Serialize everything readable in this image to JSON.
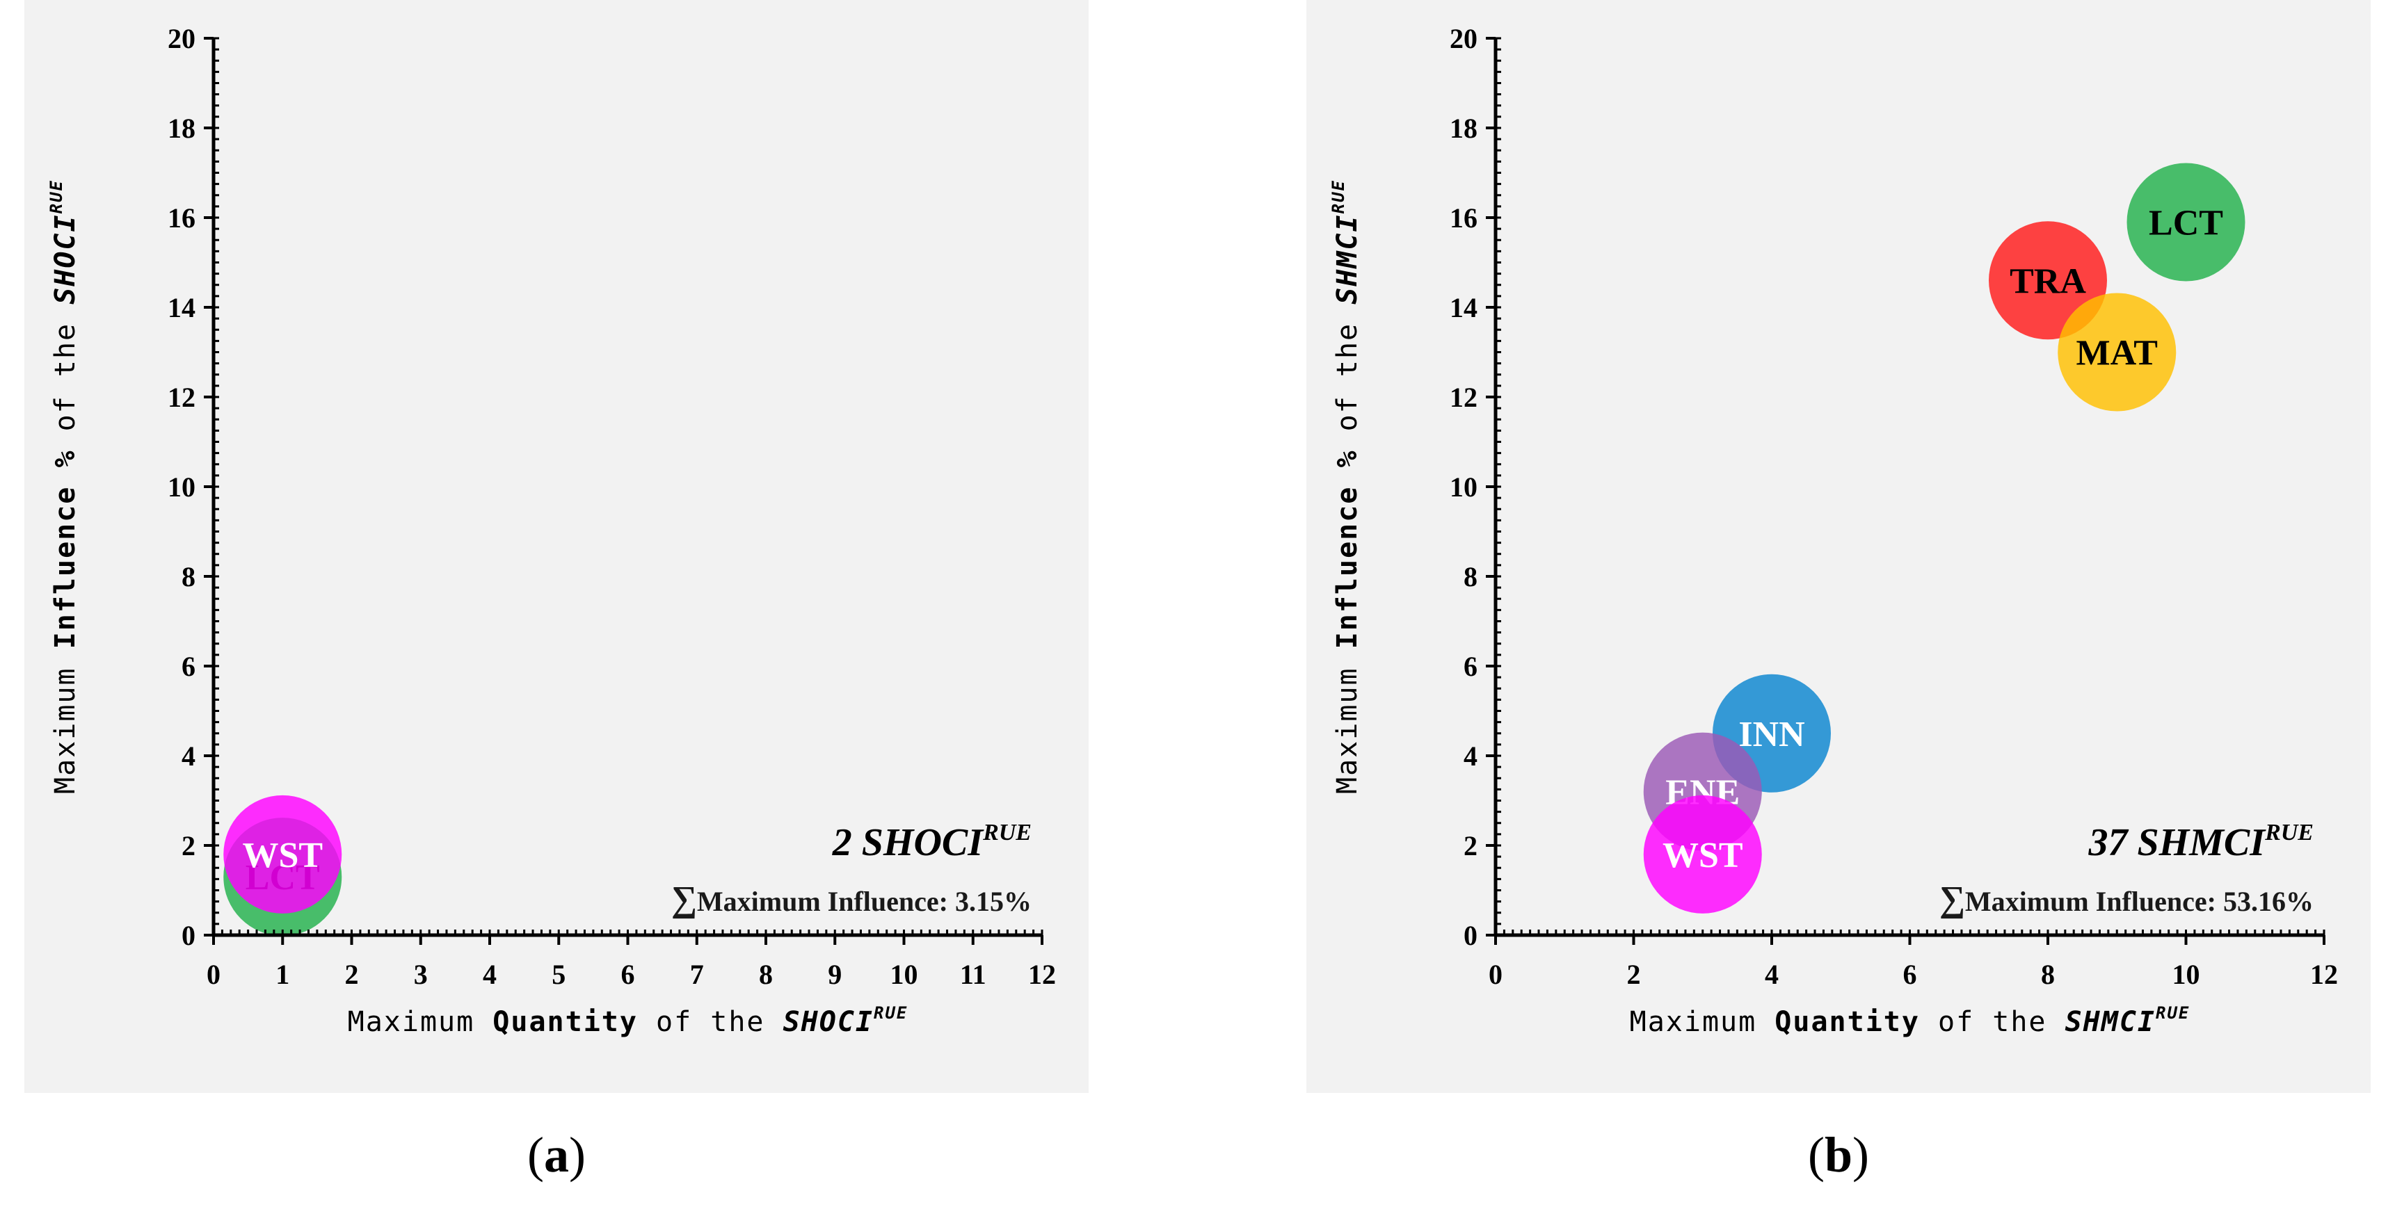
{
  "chart_data": [
    {
      "type": "scatter",
      "subtype": "bubble",
      "panel_label": "a",
      "xlabel_prefix": "Maximum ",
      "xlabel_bold": "Quantity",
      "xlabel_mid": " of the ",
      "xlabel_var": "SHOCI",
      "xlabel_sup": "RUE",
      "ylabel_prefix": "Maximum ",
      "ylabel_bold": "Influence %",
      "ylabel_mid": " of the ",
      "ylabel_var": "SHOCI",
      "ylabel_sup": "RUE",
      "xlim": [
        0,
        12
      ],
      "ylim": [
        0,
        20
      ],
      "xticks": [
        0,
        1,
        2,
        3,
        4,
        5,
        6,
        7,
        8,
        9,
        10,
        11,
        12
      ],
      "yticks": [
        0,
        2,
        4,
        6,
        8,
        10,
        12,
        14,
        16,
        18,
        20
      ],
      "points": [
        {
          "label": "LCT",
          "x": 1,
          "y": 1.3,
          "color": "#22b14c",
          "text_color": "#000000"
        },
        {
          "label": "WST",
          "x": 1,
          "y": 1.8,
          "color": "#ff00ff",
          "text_color": "#ffffff"
        }
      ],
      "annotation": {
        "count": "2",
        "name": "SHOCI",
        "sup": "RUE",
        "sum_symbol": "∑",
        "sum_label": "Maximum Influence: 3.15%"
      }
    },
    {
      "type": "scatter",
      "subtype": "bubble",
      "panel_label": "b",
      "xlabel_prefix": "Maximum ",
      "xlabel_bold": "Quantity",
      "xlabel_mid": " of the ",
      "xlabel_var": "SHMCI",
      "xlabel_sup": "RUE",
      "ylabel_prefix": "Maximum ",
      "ylabel_bold": "Influence %",
      "ylabel_mid": " of the ",
      "ylabel_var": "SHMCI",
      "ylabel_sup": "RUE",
      "xlim": [
        0,
        12
      ],
      "ylim": [
        0,
        20
      ],
      "xticks": [
        0,
        2,
        4,
        6,
        8,
        10,
        12
      ],
      "yticks": [
        0,
        2,
        4,
        6,
        8,
        10,
        12,
        14,
        16,
        18,
        20
      ],
      "points": [
        {
          "label": "LCT",
          "x": 10,
          "y": 15.9,
          "color": "#22b14c",
          "text_color": "#000000"
        },
        {
          "label": "TRA",
          "x": 8,
          "y": 14.6,
          "color": "#ff1a1a",
          "text_color": "#000000"
        },
        {
          "label": "MAT",
          "x": 9,
          "y": 13.0,
          "color": "#ffc000",
          "text_color": "#000000"
        },
        {
          "label": "INN",
          "x": 4,
          "y": 4.5,
          "color": "#0a85d0",
          "text_color": "#ffffff"
        },
        {
          "label": "ENE",
          "x": 3,
          "y": 3.2,
          "color": "#9b59b6",
          "text_color": "#ffffff"
        },
        {
          "label": "WST",
          "x": 3,
          "y": 1.8,
          "color": "#ff00ff",
          "text_color": "#ffffff"
        }
      ],
      "annotation": {
        "count": "37",
        "name": "SHMCI",
        "sup": "RUE",
        "sum_symbol": "∑",
        "sum_label": "Maximum Influence: 53.16%"
      }
    }
  ]
}
